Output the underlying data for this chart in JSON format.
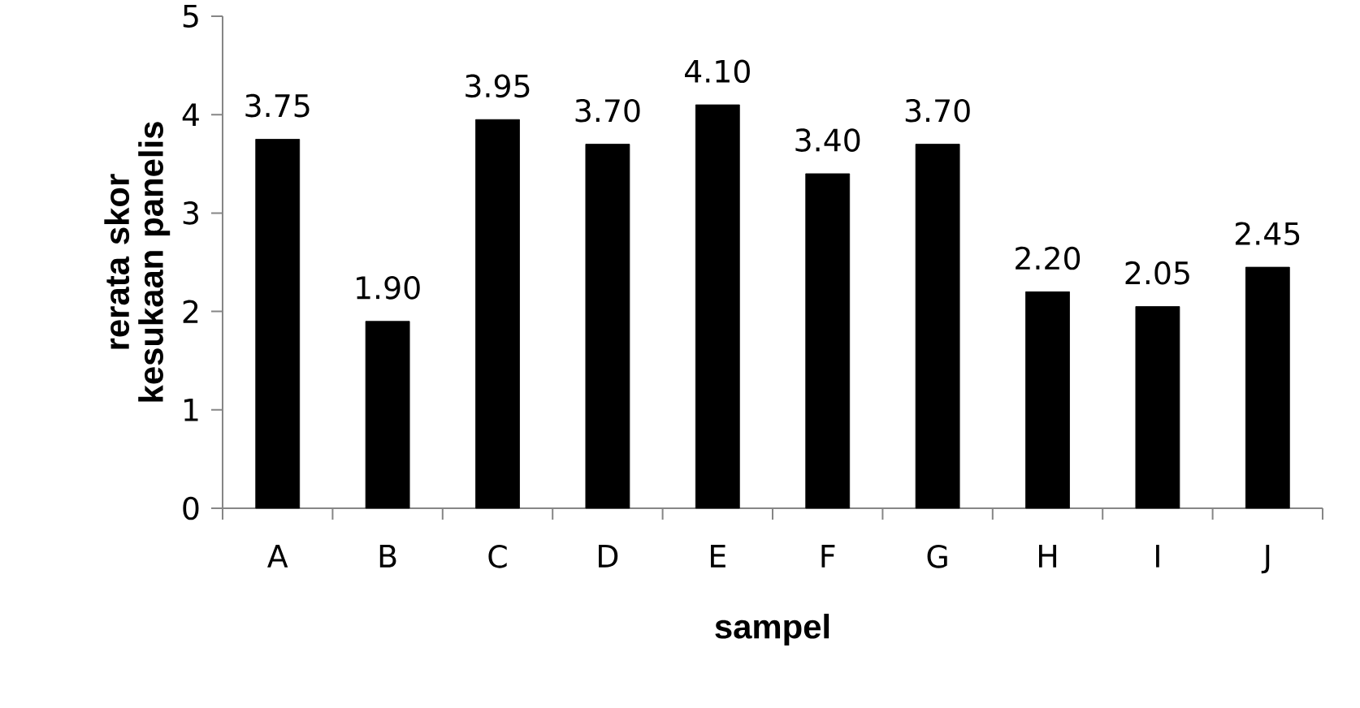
{
  "chart_data": {
    "type": "bar",
    "categories": [
      "A",
      "B",
      "C",
      "D",
      "E",
      "F",
      "G",
      "H",
      "I",
      "J"
    ],
    "values": [
      3.75,
      1.9,
      3.95,
      3.7,
      4.1,
      3.4,
      3.7,
      2.2,
      2.05,
      2.45
    ],
    "value_labels": [
      "3.75",
      "1.90",
      "3.95",
      "3.70",
      "4.10",
      "3.40",
      "3.70",
      "2.20",
      "2.05",
      "2.45"
    ],
    "color": "#000000",
    "xlabel": "sampel",
    "ylabel": "rerata skor kesukaan panelis",
    "ylim": [
      0,
      5
    ],
    "yticks": [
      0,
      1,
      2,
      3,
      4,
      5
    ],
    "grid": false
  }
}
